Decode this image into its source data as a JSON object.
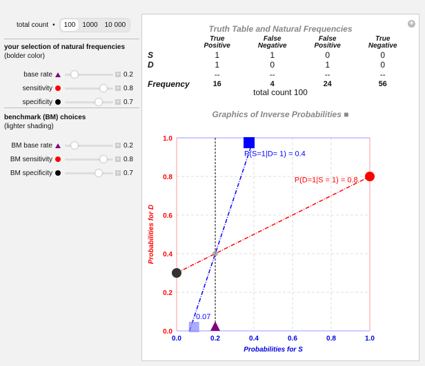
{
  "controls": {
    "total_count_label": "total count",
    "total_count_options": [
      "100",
      "1000",
      "10 000"
    ],
    "total_count_selected": "100",
    "selection_title": "your selection of natural frequencies",
    "selection_sub": "(bolder color)",
    "selection_sliders": [
      {
        "label": "base rate",
        "marker": "triangle",
        "color": "#800080",
        "value": 0.2,
        "display": "0.2"
      },
      {
        "label": "sensitivity",
        "marker": "dot",
        "color": "#ff0000",
        "value": 0.8,
        "display": "0.8"
      },
      {
        "label": "specificity",
        "marker": "dot",
        "color": "#000000",
        "value": 0.7,
        "display": "0.7"
      }
    ],
    "bm_title": "benchmark (BM) choices",
    "bm_sub": "(lighter shading)",
    "bm_sliders": [
      {
        "label": "BM base rate",
        "marker": "triangle",
        "color": "#800080",
        "value": 0.2,
        "display": "0.2"
      },
      {
        "label": "BM sensitivity",
        "marker": "dot",
        "color": "#ff0000",
        "value": 0.8,
        "display": "0.8"
      },
      {
        "label": "BM specificity",
        "marker": "dot",
        "color": "#000000",
        "value": 0.7,
        "display": "0.7"
      }
    ]
  },
  "table": {
    "title": "Truth Table and Natural Frequencies",
    "columns": [
      [
        "True",
        "Positive"
      ],
      [
        "False",
        "Negative"
      ],
      [
        "False",
        "Positive"
      ],
      [
        "True",
        "Negative"
      ]
    ],
    "rows": [
      {
        "label": "S",
        "cells": [
          "1",
          "1",
          "0",
          "0"
        ]
      },
      {
        "label": "D",
        "cells": [
          "1",
          "0",
          "1",
          "0"
        ]
      },
      {
        "label": "",
        "cells": [
          "--",
          "--",
          "--",
          "--"
        ]
      },
      {
        "label": "Frequency",
        "cells": [
          "16",
          "4",
          "24",
          "56"
        ]
      }
    ],
    "total": "total count 100"
  },
  "chart_data": {
    "type": "line",
    "title": "Graphics of Inverse Probabilities ■",
    "xlabel": "Probabilities for S",
    "ylabel": "Probabilities for D",
    "xlim": [
      0,
      1
    ],
    "ylim": [
      0,
      1
    ],
    "ticks": [
      "0.0",
      "0.2",
      "0.4",
      "0.6",
      "0.8",
      "1.0"
    ],
    "grid": true,
    "series": [
      {
        "color": "#ff0000",
        "points": [
          [
            0,
            0.3
          ],
          [
            1,
            0.8
          ]
        ],
        "label": "P(D=1|S = 1) = 0.8"
      },
      {
        "color": "#0000ff",
        "points": [
          [
            0.067,
            0
          ],
          [
            0.4,
            1
          ]
        ],
        "label": "P(S=1|D= 1) = 0.4"
      }
    ],
    "vertical_line_x": 0.2,
    "markers": [
      {
        "shape": "circle",
        "color": "#ff0000",
        "x": 1,
        "y": 0.8
      },
      {
        "shape": "circle",
        "color": "#333333",
        "x": 0,
        "y": 0.3
      },
      {
        "shape": "square",
        "color": "#0000ff",
        "x": 0.375,
        "y": 0.975
      },
      {
        "shape": "square",
        "color": "#8888ff",
        "x": 0.09,
        "y": 0.02
      },
      {
        "shape": "triangle",
        "color": "#800080",
        "x": 0.2,
        "y": 0.02
      },
      {
        "shape": "circle",
        "color": "#999999",
        "x": 0.2,
        "y": 0.4
      }
    ],
    "annotation": "0.07"
  }
}
